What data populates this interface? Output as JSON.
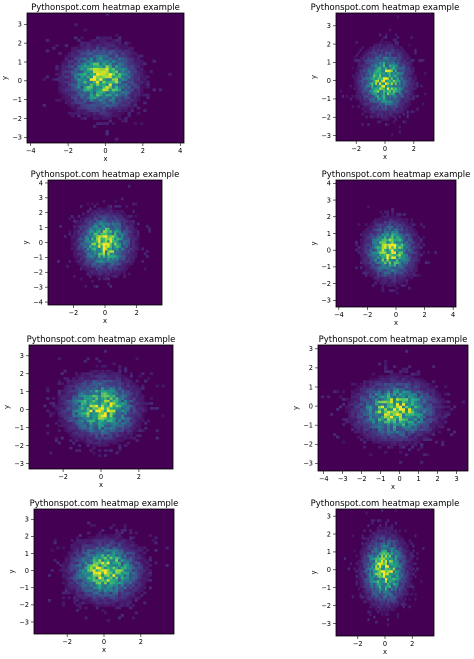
{
  "chart_data": [
    {
      "type": "heatmap",
      "title": "Pythonspot.com heatmap example",
      "xlabel": "x",
      "ylabel": "y",
      "xlim": [
        -4.2,
        4.2
      ],
      "ylim": [
        -3.3,
        3.6
      ],
      "xticks": [
        -4,
        -2,
        0,
        2,
        4
      ],
      "yticks": [
        -3,
        -2,
        -1,
        0,
        1,
        2,
        3
      ],
      "colormap": "viridis",
      "bins": [
        50,
        50
      ],
      "center": [
        -0.2,
        0.1
      ],
      "spread": [
        1.0,
        0.9
      ],
      "grid": false,
      "legend": "none"
    },
    {
      "type": "heatmap",
      "title": "Pythonspot.com heatmap example",
      "xlabel": "x",
      "ylabel": "y",
      "xlim": [
        -3.4,
        3.4
      ],
      "ylim": [
        -3.3,
        3.7
      ],
      "xticks": [
        -2,
        0,
        2
      ],
      "yticks": [
        -3,
        -2,
        -1,
        0,
        1,
        2,
        3
      ],
      "colormap": "viridis",
      "bins": [
        50,
        50
      ],
      "center": [
        0.0,
        0.0
      ],
      "spread": [
        0.9,
        0.9
      ],
      "grid": false,
      "legend": "none"
    },
    {
      "type": "heatmap",
      "title": "Pythonspot.com heatmap example",
      "xlabel": "x",
      "ylabel": "y",
      "xlim": [
        -3.6,
        3.6
      ],
      "ylim": [
        -4.2,
        4.2
      ],
      "xticks": [
        -2,
        0,
        2
      ],
      "yticks": [
        -4,
        -3,
        -2,
        -1,
        0,
        1,
        2,
        3,
        4
      ],
      "colormap": "viridis",
      "bins": [
        50,
        50
      ],
      "center": [
        0.0,
        0.0
      ],
      "spread": [
        0.9,
        1.0
      ],
      "grid": false,
      "legend": "none"
    },
    {
      "type": "heatmap",
      "title": "Pythonspot.com heatmap example",
      "xlabel": "x",
      "ylabel": "y",
      "xlim": [
        -4.2,
        4.2
      ],
      "ylim": [
        -3.4,
        4.2
      ],
      "xticks": [
        -4,
        -2,
        0,
        2,
        4
      ],
      "yticks": [
        -3,
        -2,
        -1,
        0,
        1,
        2,
        3,
        4
      ],
      "colormap": "viridis",
      "bins": [
        50,
        50
      ],
      "center": [
        -0.4,
        0.0
      ],
      "spread": [
        0.9,
        0.9
      ],
      "grid": false,
      "legend": "none"
    },
    {
      "type": "heatmap",
      "title": "Pythonspot.com heatmap example",
      "xlabel": "x",
      "ylabel": "y",
      "xlim": [
        -3.8,
        3.8
      ],
      "ylim": [
        -3.3,
        3.6
      ],
      "xticks": [
        -2,
        0,
        2
      ],
      "yticks": [
        -3,
        -2,
        -1,
        0,
        1,
        2,
        3
      ],
      "colormap": "viridis",
      "bins": [
        50,
        50
      ],
      "center": [
        0.0,
        0.1
      ],
      "spread": [
        1.0,
        0.9
      ],
      "grid": false,
      "legend": "none"
    },
    {
      "type": "heatmap",
      "title": "Pythonspot.com heatmap example",
      "xlabel": "x",
      "ylabel": "y",
      "xlim": [
        -4.3,
        3.6
      ],
      "ylim": [
        -3.4,
        3.2
      ],
      "xticks": [
        -4,
        -3,
        -2,
        -1,
        0,
        1,
        2,
        3
      ],
      "yticks": [
        -3,
        -2,
        -1,
        0,
        1,
        2,
        3
      ],
      "colormap": "viridis",
      "bins": [
        50,
        50
      ],
      "center": [
        -0.2,
        -0.2
      ],
      "spread": [
        1.1,
        0.8
      ],
      "grid": false,
      "legend": "none"
    },
    {
      "type": "heatmap",
      "title": "Pythonspot.com heatmap example",
      "xlabel": "x",
      "ylabel": "y",
      "xlim": [
        -3.8,
        3.8
      ],
      "ylim": [
        -3.7,
        3.6
      ],
      "xticks": [
        -2,
        0,
        2
      ],
      "yticks": [
        -3,
        -2,
        -1,
        0,
        1,
        2,
        3
      ],
      "colormap": "viridis",
      "bins": [
        50,
        50
      ],
      "center": [
        0.1,
        0.0
      ],
      "spread": [
        1.0,
        0.9
      ],
      "grid": false,
      "legend": "none"
    },
    {
      "type": "heatmap",
      "title": "Pythonspot.com heatmap example",
      "xlabel": "x",
      "ylabel": "y",
      "xlim": [
        -3.6,
        3.6
      ],
      "ylim": [
        -3.7,
        3.4
      ],
      "xticks": [
        -2,
        0,
        2
      ],
      "yticks": [
        -3,
        -2,
        -1,
        0,
        1,
        2,
        3
      ],
      "colormap": "viridis",
      "bins": [
        50,
        50
      ],
      "center": [
        0.0,
        0.0
      ],
      "spread": [
        0.85,
        1.0
      ],
      "grid": false,
      "legend": "none"
    }
  ]
}
